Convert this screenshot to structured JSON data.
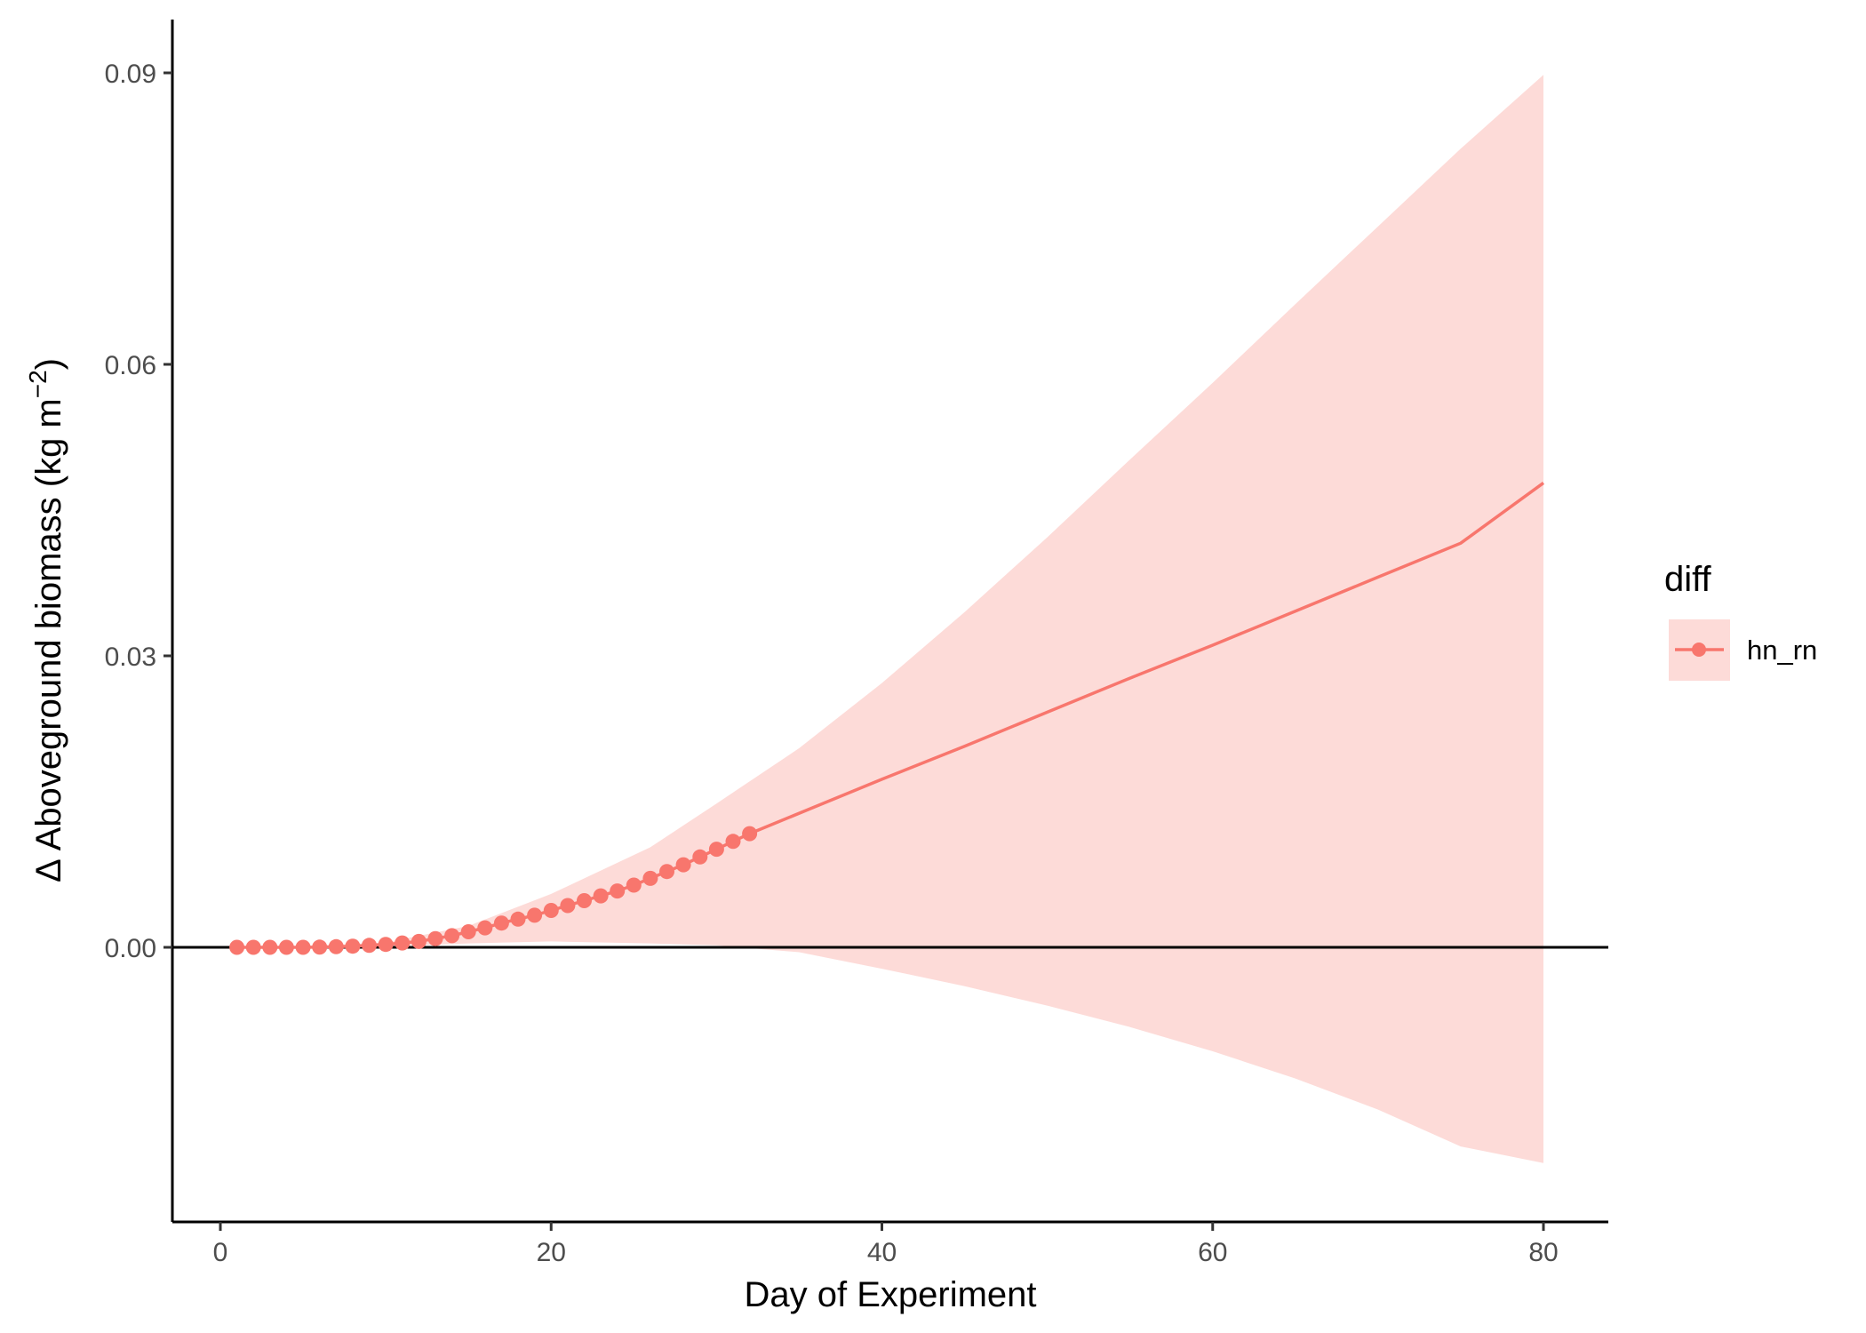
{
  "chart_data": {
    "type": "line",
    "title": "",
    "xlabel": "Day of Experiment",
    "ylabel_main": "Δ Aboveground biomass (kg m",
    "ylabel_sup": "−2",
    "ylabel_close": ")",
    "xlim": [
      -3,
      84
    ],
    "ylim": [
      -0.028,
      0.095
    ],
    "x_ticks": [
      0,
      20,
      40,
      60,
      80
    ],
    "x_tick_labels": [
      "0",
      "20",
      "40",
      "60",
      "80"
    ],
    "y_ticks": [
      0.0,
      0.03,
      0.06,
      0.09
    ],
    "y_tick_labels": [
      "0.00",
      "0.03",
      "0.06",
      "0.09"
    ],
    "grid": false,
    "reference_line_y": 0,
    "legend": {
      "title": "diff",
      "placement": "right",
      "entries": [
        "hn_rn"
      ]
    },
    "colors": {
      "series": "#F8766D",
      "ribbon": "#FDDBD8",
      "axis": "#000000"
    },
    "series": [
      {
        "name": "hn_rn",
        "points": {
          "x": [
            1,
            2,
            3,
            4,
            5,
            6,
            7,
            8,
            9,
            10,
            11,
            12,
            13,
            14,
            15,
            16,
            17,
            18,
            19,
            20,
            21,
            22,
            23,
            24,
            25,
            26,
            27,
            28,
            29,
            30,
            31,
            32
          ],
          "y": [
            0.0,
            0.0,
            0.0,
            0.0,
            0.0,
            2e-05,
            6e-05,
            0.00012,
            0.0002,
            0.0003,
            0.00045,
            0.0006,
            0.0009,
            0.0012,
            0.0016,
            0.002,
            0.0025,
            0.0029,
            0.0033,
            0.0038,
            0.0043,
            0.0048,
            0.0053,
            0.0058,
            0.0064,
            0.0071,
            0.0078,
            0.0085,
            0.0093,
            0.0101,
            0.0109,
            0.0117
          ]
        },
        "line": {
          "x": [
            32,
            36,
            40,
            45,
            50,
            55,
            60,
            65,
            70,
            75,
            80
          ],
          "y": [
            0.0117,
            0.0145,
            0.0173,
            0.0207,
            0.0242,
            0.0277,
            0.0311,
            0.0346,
            0.0381,
            0.0416,
            0.0478
          ]
        },
        "ribbon": {
          "x": [
            1,
            5,
            10,
            15,
            20,
            26,
            30,
            35,
            40,
            45,
            50,
            55,
            60,
            65,
            70,
            75,
            80
          ],
          "upper": [
            0.0,
            0.0001,
            0.0005,
            0.0022,
            0.0055,
            0.0103,
            0.0148,
            0.0205,
            0.0272,
            0.0345,
            0.0422,
            0.0502,
            0.0581,
            0.0662,
            0.0742,
            0.0822,
            0.0898
          ],
          "lower": [
            0.0,
            0.0,
            0.0001,
            0.0004,
            0.0006,
            0.0004,
            0.0002,
            -0.0005,
            -0.0022,
            -0.004,
            -0.006,
            -0.0082,
            -0.0107,
            -0.0135,
            -0.0167,
            -0.0205,
            -0.0222
          ]
        }
      }
    ]
  }
}
